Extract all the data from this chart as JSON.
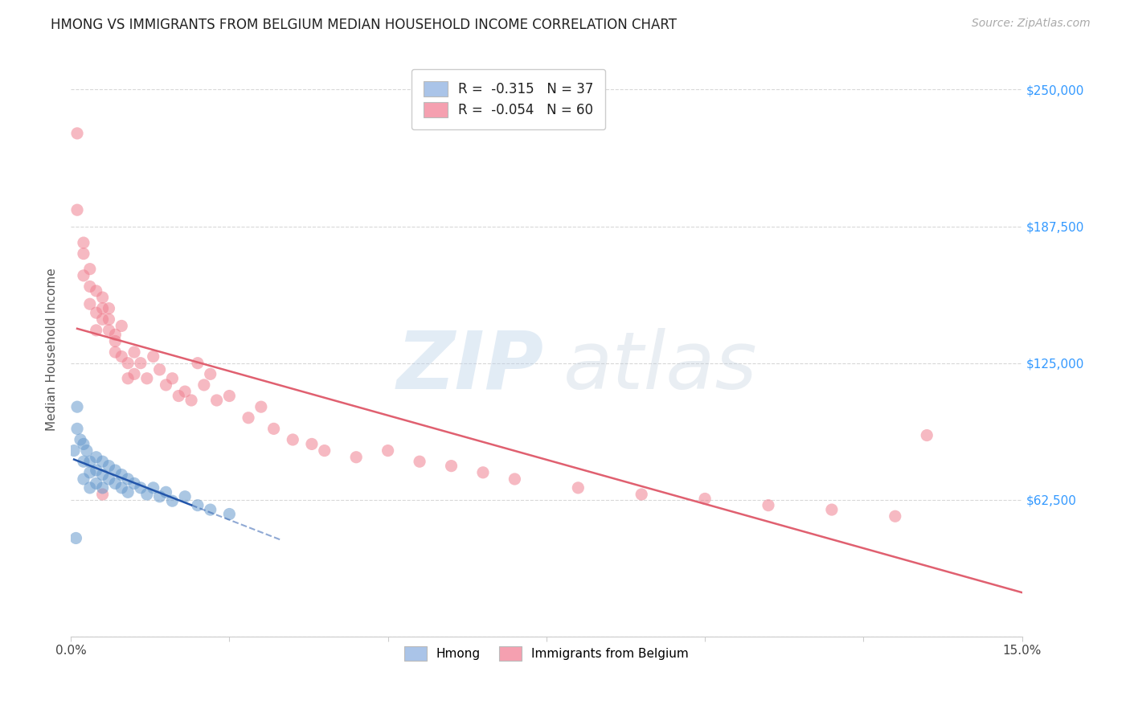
{
  "title": "HMONG VS IMMIGRANTS FROM BELGIUM MEDIAN HOUSEHOLD INCOME CORRELATION CHART",
  "source": "Source: ZipAtlas.com",
  "ylabel": "Median Household Income",
  "yticks": [
    0,
    62500,
    125000,
    187500,
    250000
  ],
  "ytick_labels": [
    "",
    "$62,500",
    "$125,000",
    "$187,500",
    "$250,000"
  ],
  "xlim": [
    0.0,
    0.15
  ],
  "ylim": [
    0,
    262500
  ],
  "background_color": "#ffffff",
  "grid_color": "#d8d8d8",
  "hmong_color": "#aac4e8",
  "belgium_color": "#f5a0b0",
  "hmong_scatter_color": "#6699cc",
  "belgium_scatter_color": "#f08090",
  "hmong_line_color": "#2255aa",
  "belgium_line_color": "#e06070",
  "hmong_R": -0.315,
  "hmong_N": 37,
  "belgium_R": -0.054,
  "belgium_N": 60,
  "hmong_points_x": [
    0.0005,
    0.001,
    0.001,
    0.0015,
    0.002,
    0.002,
    0.002,
    0.0025,
    0.003,
    0.003,
    0.003,
    0.004,
    0.004,
    0.004,
    0.005,
    0.005,
    0.005,
    0.006,
    0.006,
    0.007,
    0.007,
    0.008,
    0.008,
    0.009,
    0.009,
    0.01,
    0.011,
    0.012,
    0.013,
    0.014,
    0.015,
    0.016,
    0.018,
    0.02,
    0.022,
    0.025,
    0.0008
  ],
  "hmong_points_y": [
    85000,
    95000,
    105000,
    90000,
    88000,
    80000,
    72000,
    85000,
    80000,
    75000,
    68000,
    82000,
    76000,
    70000,
    80000,
    74000,
    68000,
    78000,
    72000,
    76000,
    70000,
    74000,
    68000,
    72000,
    66000,
    70000,
    68000,
    65000,
    68000,
    64000,
    66000,
    62000,
    64000,
    60000,
    58000,
    56000,
    45000
  ],
  "belgium_points_x": [
    0.001,
    0.001,
    0.002,
    0.002,
    0.003,
    0.003,
    0.004,
    0.004,
    0.005,
    0.005,
    0.006,
    0.006,
    0.007,
    0.007,
    0.008,
    0.008,
    0.009,
    0.009,
    0.01,
    0.01,
    0.011,
    0.012,
    0.013,
    0.014,
    0.015,
    0.016,
    0.017,
    0.018,
    0.019,
    0.02,
    0.021,
    0.022,
    0.023,
    0.025,
    0.028,
    0.03,
    0.032,
    0.035,
    0.038,
    0.04,
    0.045,
    0.05,
    0.055,
    0.06,
    0.065,
    0.07,
    0.08,
    0.09,
    0.1,
    0.11,
    0.12,
    0.13,
    0.002,
    0.003,
    0.004,
    0.005,
    0.006,
    0.007,
    0.005,
    0.135
  ],
  "belgium_points_y": [
    230000,
    195000,
    175000,
    165000,
    160000,
    152000,
    148000,
    140000,
    155000,
    145000,
    150000,
    140000,
    135000,
    130000,
    142000,
    128000,
    125000,
    118000,
    130000,
    120000,
    125000,
    118000,
    128000,
    122000,
    115000,
    118000,
    110000,
    112000,
    108000,
    125000,
    115000,
    120000,
    108000,
    110000,
    100000,
    105000,
    95000,
    90000,
    88000,
    85000,
    82000,
    85000,
    80000,
    78000,
    75000,
    72000,
    68000,
    65000,
    63000,
    60000,
    58000,
    55000,
    180000,
    168000,
    158000,
    150000,
    145000,
    138000,
    65000,
    92000
  ]
}
